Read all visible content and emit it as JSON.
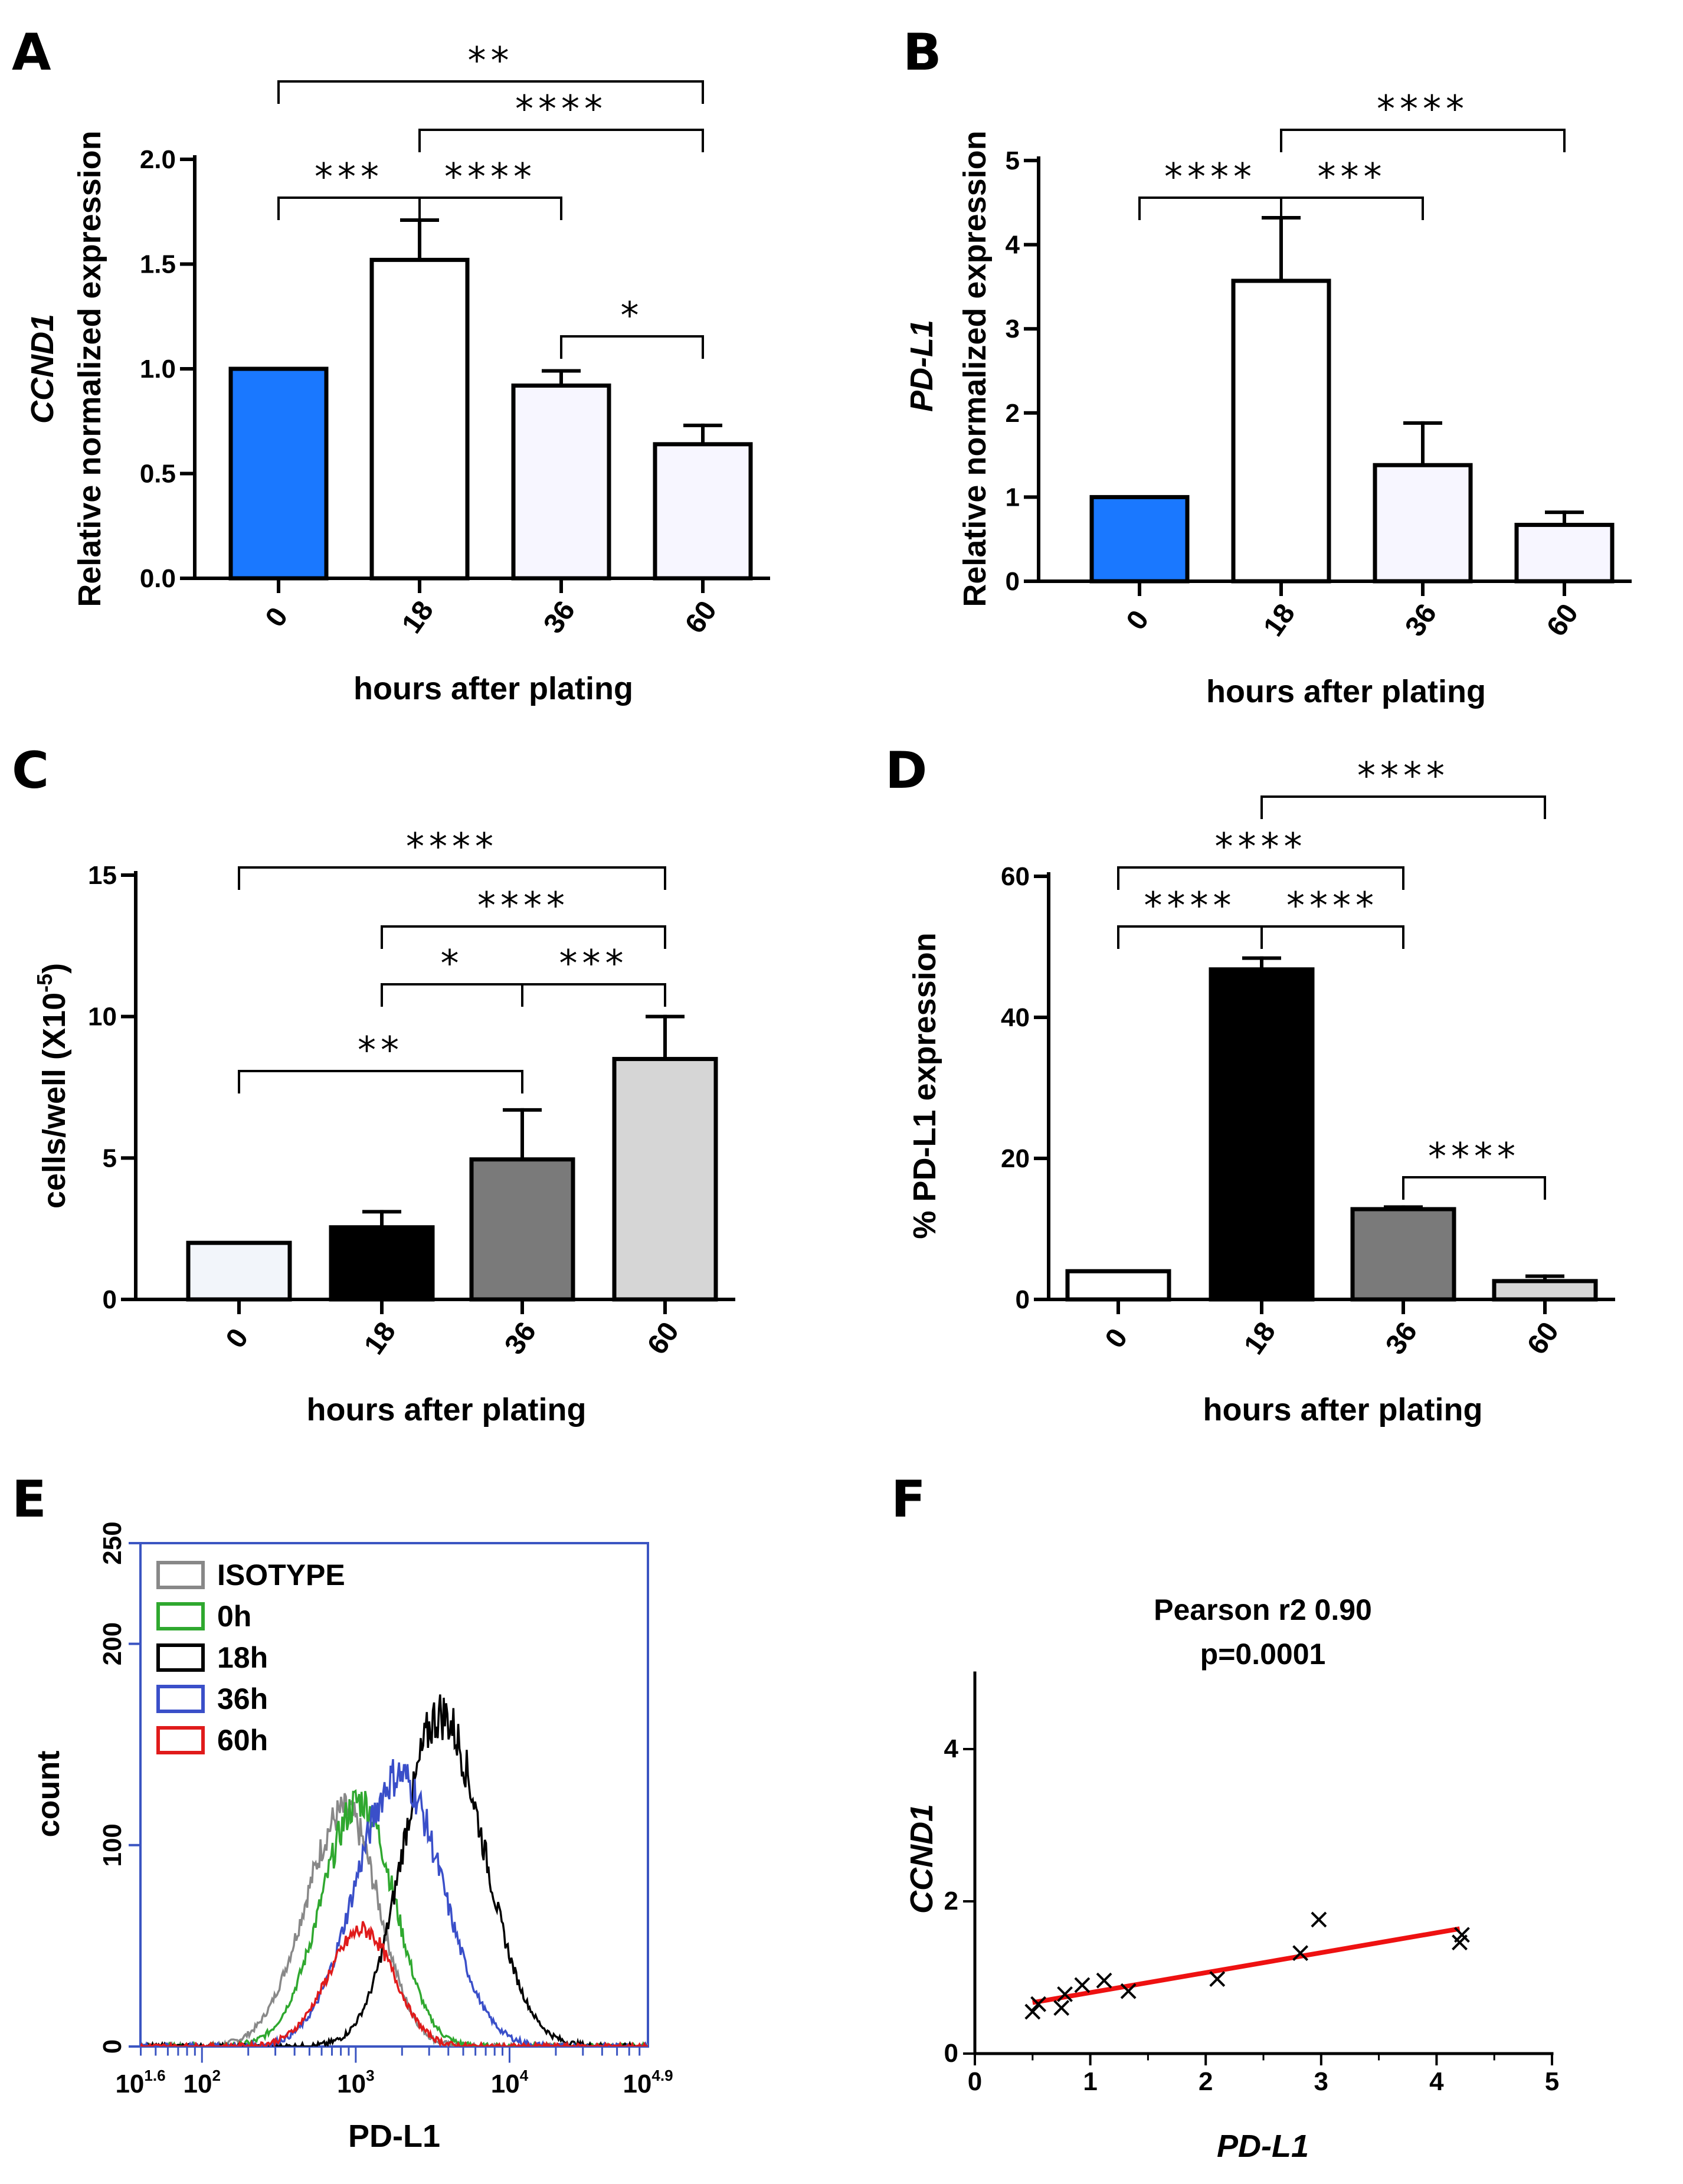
{
  "chart_data": [
    {
      "panel": "A",
      "type": "bar",
      "title": "",
      "gene_label": "CCND1",
      "ylabel": "Relative normalized expression",
      "xlabel": "hours after plating",
      "categories": [
        "0",
        "18",
        "36",
        "60"
      ],
      "values": [
        1.0,
        1.52,
        0.92,
        0.64
      ],
      "errors": [
        0.0,
        0.19,
        0.07,
        0.09
      ],
      "fills": [
        "#1a78ff",
        "#ffffff",
        "#f7f6ff",
        "#f7f6ff"
      ],
      "ylim": [
        0,
        2.0
      ],
      "yticks": [
        "0.0",
        "0.5",
        "1.0",
        "1.5",
        "2.0"
      ],
      "ytick_values": [
        0,
        0.5,
        1.0,
        1.5,
        2.0
      ],
      "significance": [
        {
          "from": 0,
          "to": 3,
          "label": "**"
        },
        {
          "from": 1,
          "to": 3,
          "label": "****"
        },
        {
          "from": 0,
          "to": 1,
          "label": "***"
        },
        {
          "from": 1,
          "to": 2,
          "label": "****"
        },
        {
          "from": 2,
          "to": 3,
          "label": "*"
        }
      ]
    },
    {
      "panel": "B",
      "type": "bar",
      "title": "",
      "gene_label": "PD-L1",
      "ylabel": "Relative normalized expression",
      "xlabel": "hours after plating",
      "categories": [
        "0",
        "18",
        "36",
        "60"
      ],
      "values": [
        1.0,
        3.57,
        1.38,
        0.67
      ],
      "errors": [
        0.0,
        0.75,
        0.5,
        0.15
      ],
      "fills": [
        "#1a78ff",
        "#ffffff",
        "#f7f6ff",
        "#f7f6ff"
      ],
      "ylim": [
        0,
        5
      ],
      "yticks": [
        "0",
        "1",
        "2",
        "3",
        "4",
        "5"
      ],
      "ytick_values": [
        0,
        1,
        2,
        3,
        4,
        5
      ],
      "significance": [
        {
          "from": 1,
          "to": 3,
          "label": "****"
        },
        {
          "from": 0,
          "to": 1,
          "label": "****"
        },
        {
          "from": 1,
          "to": 2,
          "label": "***"
        }
      ]
    },
    {
      "panel": "C",
      "type": "bar",
      "title": "",
      "ylabel": "cells/well (X10",
      "ylabel_sup": "-5",
      "ylabel_end": ")",
      "xlabel": "hours after plating",
      "categories": [
        "0",
        "18",
        "36",
        "60"
      ],
      "values": [
        2.0,
        2.55,
        4.95,
        8.5
      ],
      "errors": [
        0.0,
        0.55,
        1.75,
        1.5
      ],
      "fills": [
        "#f2f5fa",
        "#000000",
        "#7a7a7a",
        "#d6d6d6"
      ],
      "ylim": [
        0,
        15
      ],
      "yticks": [
        "0",
        "5",
        "10",
        "15"
      ],
      "ytick_values": [
        0,
        5,
        10,
        15
      ],
      "significance": [
        {
          "from": 0,
          "to": 3,
          "label": "****"
        },
        {
          "from": 1,
          "to": 3,
          "label": "****"
        },
        {
          "from": 1,
          "to": 2,
          "label": "*"
        },
        {
          "from": 2,
          "to": 3,
          "label": "***"
        },
        {
          "from": 0,
          "to": 2,
          "label": "**"
        }
      ]
    },
    {
      "panel": "D",
      "type": "bar",
      "title": "",
      "ylabel": "% PD-L1 expression",
      "xlabel": "hours after plating",
      "categories": [
        "0",
        "18",
        "36",
        "60"
      ],
      "values": [
        4.0,
        46.8,
        12.8,
        2.6
      ],
      "errors": [
        0.0,
        1.6,
        0.3,
        0.7
      ],
      "fills": [
        "#ffffff",
        "#000000",
        "#7a7a7a",
        "#d6d6d6"
      ],
      "ylim": [
        0,
        60
      ],
      "yticks": [
        "0",
        "20",
        "40",
        "60"
      ],
      "ytick_values": [
        0,
        20,
        40,
        60
      ],
      "significance": [
        {
          "from": 1,
          "to": 3,
          "label": "****"
        },
        {
          "from": 0,
          "to": 2,
          "label": "****"
        },
        {
          "from": 0,
          "to": 1,
          "label": "****"
        },
        {
          "from": 1,
          "to": 2,
          "label": "****"
        },
        {
          "from": 2,
          "to": 3,
          "label": "****"
        }
      ]
    },
    {
      "panel": "E",
      "type": "line",
      "title": "",
      "xlabel": "PD-L1",
      "ylabel": "count",
      "xscale": "log",
      "xlim_log10": [
        1.6,
        4.9
      ],
      "xticks": [
        {
          "base": "10",
          "exp": "1.6",
          "log": 1.6
        },
        {
          "base": "10",
          "exp": "2",
          "log": 2
        },
        {
          "base": "10",
          "exp": "3",
          "log": 3
        },
        {
          "base": "10",
          "exp": "4",
          "log": 4
        },
        {
          "base": "10",
          "exp": "4.9",
          "log": 4.9
        }
      ],
      "ylim": [
        0,
        250
      ],
      "yticks": [
        "0",
        "100",
        "200",
        "250"
      ],
      "ytick_values": [
        0,
        100,
        200,
        250
      ],
      "legend_position": "top-left",
      "series": [
        {
          "name": "ISOTYPE",
          "color": "#888888",
          "peak_log": 2.93,
          "height": 117,
          "sigma_left": 0.26,
          "sigma_right": 0.22
        },
        {
          "name": "  0h",
          "color": "#2fa82f",
          "peak_log": 3.03,
          "height": 122,
          "sigma_left": 0.25,
          "sigma_right": 0.22
        },
        {
          "name": "18h",
          "color": "#000000",
          "peak_log": 3.55,
          "height": 165,
          "sigma_left": 0.24,
          "sigma_right": 0.28
        },
        {
          "name": "36h",
          "color": "#3a4fc9",
          "peak_log": 3.28,
          "height": 135,
          "sigma_left": 0.28,
          "sigma_right": 0.28
        },
        {
          "name": "60h",
          "color": "#e01b1b",
          "peak_log": 3.05,
          "height": 58,
          "sigma_left": 0.23,
          "sigma_right": 0.2
        }
      ]
    },
    {
      "panel": "F",
      "type": "scatter",
      "title": "Pearson r2 0.90",
      "subtitle": "p=0.0001",
      "xlabel": "PD-L1",
      "ylabel": "CCND1",
      "xlim": [
        0,
        5
      ],
      "ylim": [
        0,
        5
      ],
      "xticks": [
        "0",
        "1",
        "2",
        "3",
        "4",
        "5"
      ],
      "xtick_values": [
        0,
        1,
        2,
        3,
        4,
        5
      ],
      "yticks": [
        "0",
        "2",
        "4"
      ],
      "ytick_values": [
        0,
        2,
        4
      ],
      "points": [
        [
          0.5,
          0.55
        ],
        [
          0.55,
          0.65
        ],
        [
          0.75,
          0.6
        ],
        [
          0.78,
          0.78
        ],
        [
          0.93,
          0.9
        ],
        [
          1.12,
          0.96
        ],
        [
          1.33,
          0.82
        ],
        [
          2.1,
          0.98
        ],
        [
          2.82,
          1.32
        ],
        [
          2.98,
          1.76
        ],
        [
          4.2,
          1.46
        ],
        [
          4.22,
          1.56
        ]
      ],
      "fit": {
        "color": "#ee1111",
        "x0": 0.5,
        "y0": 0.67,
        "x1": 4.2,
        "y1": 1.64
      }
    }
  ]
}
